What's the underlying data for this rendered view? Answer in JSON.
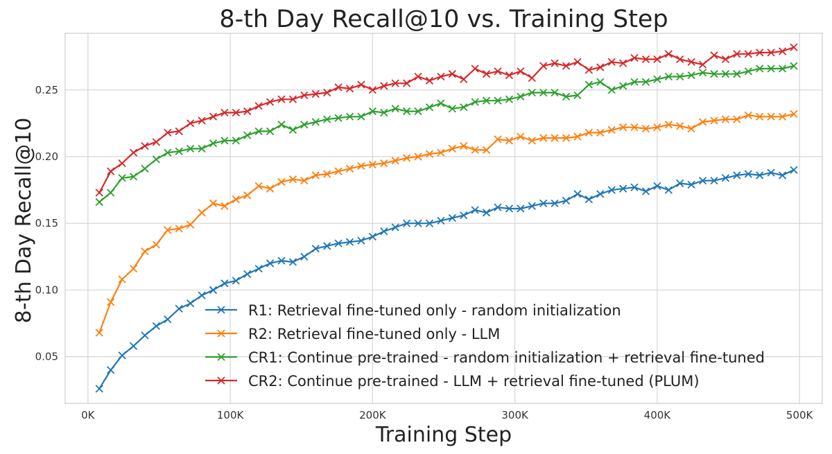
{
  "chart_data": {
    "type": "line",
    "title": "8-th Day Recall@10 vs. Training Step",
    "xlabel": "Training Step",
    "ylabel": "8-th Day Recall@10",
    "xlim": [
      -16000,
      516000
    ],
    "ylim": [
      0.015,
      0.2925
    ],
    "xticks": [
      0,
      100000,
      200000,
      300000,
      400000,
      500000
    ],
    "xtick_labels": [
      "0K",
      "100K",
      "200K",
      "300K",
      "400K",
      "500K"
    ],
    "yticks": [
      0.05,
      0.1,
      0.15,
      0.2,
      0.25
    ],
    "ytick_labels": [
      "0.05",
      "0.10",
      "0.15",
      "0.20",
      "0.25"
    ],
    "grid": true,
    "legend_position": "lower-right",
    "x": [
      8000,
      16000,
      24000,
      32000,
      40000,
      48000,
      56000,
      64000,
      72000,
      80000,
      88000,
      96000,
      104000,
      112000,
      120000,
      128000,
      136000,
      144000,
      152000,
      160000,
      168000,
      176000,
      184000,
      192000,
      200000,
      208000,
      216000,
      224000,
      232000,
      240000,
      248000,
      256000,
      264000,
      272000,
      280000,
      288000,
      296000,
      304000,
      312000,
      320000,
      328000,
      336000,
      344000,
      352000,
      360000,
      368000,
      376000,
      384000,
      392000,
      400000,
      408000,
      416000,
      424000,
      432000,
      440000,
      448000,
      456000,
      464000,
      472000,
      480000,
      488000,
      496000
    ],
    "series": [
      {
        "name": "R1: Retrieval fine-tuned only - random initialization",
        "color": "#1f77b4",
        "marker": "x",
        "values": [
          0.026,
          0.04,
          0.051,
          0.058,
          0.066,
          0.073,
          0.078,
          0.086,
          0.09,
          0.096,
          0.1,
          0.105,
          0.107,
          0.112,
          0.116,
          0.12,
          0.122,
          0.121,
          0.125,
          0.131,
          0.133,
          0.135,
          0.136,
          0.137,
          0.14,
          0.144,
          0.147,
          0.15,
          0.15,
          0.15,
          0.152,
          0.154,
          0.156,
          0.16,
          0.158,
          0.162,
          0.161,
          0.161,
          0.163,
          0.165,
          0.165,
          0.167,
          0.172,
          0.168,
          0.172,
          0.175,
          0.176,
          0.177,
          0.174,
          0.178,
          0.175,
          0.18,
          0.179,
          0.182,
          0.182,
          0.184,
          0.186,
          0.187,
          0.186,
          0.188,
          0.186,
          0.19
        ]
      },
      {
        "name": "R2: Retrieval fine-tuned only - LLM",
        "color": "#ff7f0e",
        "marker": "x",
        "values": [
          0.068,
          0.091,
          0.108,
          0.116,
          0.129,
          0.134,
          0.145,
          0.146,
          0.149,
          0.158,
          0.165,
          0.163,
          0.168,
          0.171,
          0.178,
          0.176,
          0.181,
          0.183,
          0.182,
          0.186,
          0.187,
          0.189,
          0.191,
          0.193,
          0.194,
          0.195,
          0.197,
          0.199,
          0.2,
          0.202,
          0.203,
          0.206,
          0.208,
          0.205,
          0.205,
          0.213,
          0.212,
          0.215,
          0.212,
          0.214,
          0.214,
          0.214,
          0.215,
          0.218,
          0.218,
          0.22,
          0.222,
          0.222,
          0.221,
          0.222,
          0.224,
          0.223,
          0.221,
          0.226,
          0.227,
          0.228,
          0.228,
          0.231,
          0.23,
          0.23,
          0.23,
          0.232
        ]
      },
      {
        "name": "CR1: Continue pre-trained - random initialization + retrieval fine-tuned",
        "color": "#2ca02c",
        "marker": "x",
        "values": [
          0.166,
          0.173,
          0.184,
          0.185,
          0.191,
          0.198,
          0.203,
          0.204,
          0.206,
          0.206,
          0.21,
          0.212,
          0.212,
          0.216,
          0.219,
          0.219,
          0.224,
          0.22,
          0.224,
          0.226,
          0.228,
          0.229,
          0.23,
          0.23,
          0.234,
          0.233,
          0.236,
          0.234,
          0.234,
          0.237,
          0.24,
          0.236,
          0.237,
          0.241,
          0.242,
          0.242,
          0.243,
          0.245,
          0.248,
          0.248,
          0.248,
          0.245,
          0.246,
          0.254,
          0.256,
          0.25,
          0.253,
          0.256,
          0.256,
          0.258,
          0.26,
          0.26,
          0.261,
          0.263,
          0.262,
          0.262,
          0.262,
          0.264,
          0.266,
          0.266,
          0.266,
          0.268
        ]
      },
      {
        "name": "CR2: Continue pre-trained - LLM + retrieval fine-tuned (PLUM)",
        "color": "#d62728",
        "marker": "x",
        "values": [
          0.173,
          0.189,
          0.195,
          0.203,
          0.208,
          0.211,
          0.218,
          0.219,
          0.225,
          0.227,
          0.23,
          0.233,
          0.233,
          0.234,
          0.238,
          0.241,
          0.243,
          0.243,
          0.246,
          0.247,
          0.248,
          0.252,
          0.251,
          0.254,
          0.25,
          0.253,
          0.255,
          0.255,
          0.26,
          0.257,
          0.26,
          0.262,
          0.258,
          0.266,
          0.262,
          0.264,
          0.261,
          0.264,
          0.259,
          0.268,
          0.27,
          0.268,
          0.271,
          0.265,
          0.267,
          0.271,
          0.27,
          0.274,
          0.273,
          0.273,
          0.277,
          0.273,
          0.271,
          0.269,
          0.276,
          0.273,
          0.277,
          0.277,
          0.278,
          0.278,
          0.279,
          0.282
        ]
      }
    ]
  }
}
